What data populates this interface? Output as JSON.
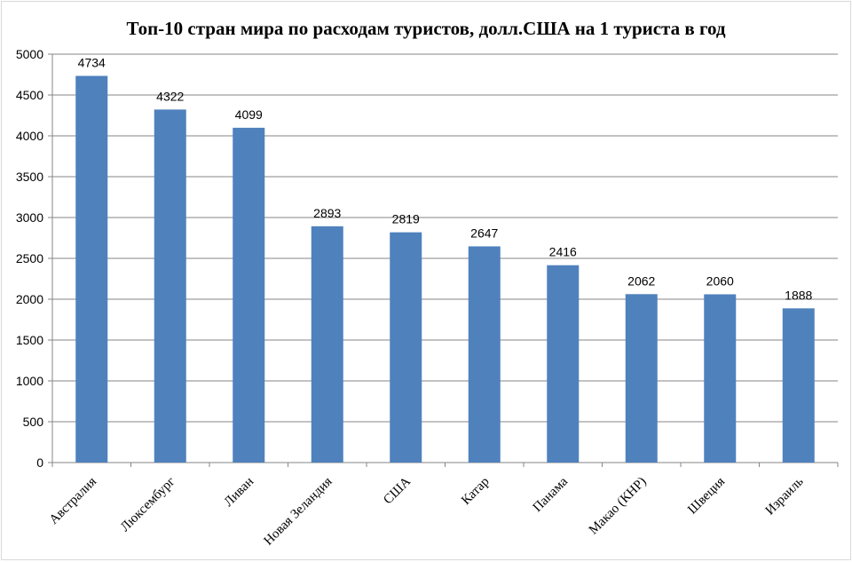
{
  "chart_data": {
    "type": "bar",
    "title": "Топ-10 стран мира по расходам туристов, долл.США на 1 туриста в год",
    "categories": [
      "Австралия",
      "Люксембург",
      "Ливан",
      "Новая Зеландия",
      "США",
      "Катар",
      "Панама",
      "Макао (КНР)",
      "Швеция",
      "Израиль"
    ],
    "values": [
      4734,
      4322,
      4099,
      2893,
      2819,
      2647,
      2416,
      2062,
      2060,
      1888
    ],
    "data_labels": [
      "4734",
      "4322",
      "4099",
      "2893",
      "2819",
      "2647",
      "2416",
      "2062",
      "2060",
      "1888"
    ],
    "ylim": [
      0,
      5000
    ],
    "yticks": [
      "0",
      "500",
      "1000",
      "1500",
      "2000",
      "2500",
      "3000",
      "3500",
      "4000",
      "4500",
      "5000"
    ],
    "xlabel": "",
    "ylabel": "",
    "grid": true,
    "legend": "none",
    "bar_color": "#4f81bd",
    "grid_color": "#868686"
  }
}
